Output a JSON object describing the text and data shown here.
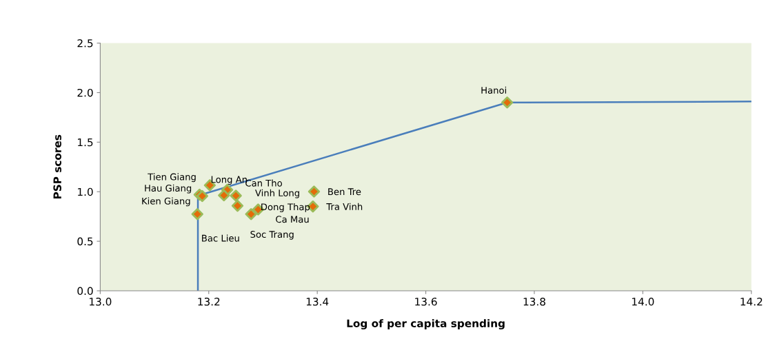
{
  "chart_data": {
    "type": "scatter",
    "xlabel": "Log of per capita spending",
    "ylabel": "PSP scores",
    "xlim": [
      13.0,
      14.2
    ],
    "xticks": [
      {
        "value": 13.0,
        "label": "13.0"
      },
      13.2,
      13.4,
      13.6,
      13.8,
      {
        "value": 14.0,
        "label": "14.0"
      },
      14.2
    ],
    "ylim": [
      0,
      2.5
    ],
    "yticks": [
      {
        "value": 0,
        "label": "0.0"
      },
      {
        "value": 0.5,
        "label": "0.5"
      },
      {
        "value": 1,
        "label": "1.0"
      },
      {
        "value": 1.5,
        "label": "1.5"
      },
      {
        "value": 2,
        "label": "2.0"
      },
      {
        "value": 2.5,
        "label": "2.5"
      }
    ],
    "grid": false,
    "legend": false,
    "marker": "diamond",
    "series": [
      {
        "type": "line",
        "color": "#4a7ebb",
        "x": [
          13.18,
          13.18,
          13.75,
          14.2
        ],
        "values": [
          0,
          0.96,
          1.9,
          1.91
        ],
        "marker": "none",
        "line_style": "solid"
      },
      {
        "color": "#e36c09",
        "x": [
          13.75,
          13.202,
          13.234,
          13.228,
          13.183,
          13.188,
          13.25,
          13.253,
          13.291,
          13.278,
          13.179,
          13.394,
          13.392
        ],
        "values": [
          1.9,
          1.065,
          1.019,
          0.963,
          0.97,
          0.956,
          0.96,
          0.858,
          0.82,
          0.774,
          0.774,
          1.002,
          0.851
        ]
      }
    ],
    "annotations": [
      {
        "text": "Hanoi",
        "x": 13.75,
        "y": 1.9
      },
      {
        "text": "Tien Giang",
        "x": 13.202,
        "y": 1.065
      },
      {
        "text": "Long An",
        "x": 13.234,
        "y": 1.019
      },
      {
        "text": "Can Tho",
        "x": 13.228,
        "y": 0.963
      },
      {
        "text": "Hau Giang",
        "x": 13.183,
        "y": 0.97
      },
      {
        "text": "Kien Giang",
        "x": 13.188,
        "y": 0.956
      },
      {
        "text": "Vinh Long",
        "x": 13.25,
        "y": 0.96
      },
      {
        "text": "Dong Thap",
        "x": 13.253,
        "y": 0.858
      },
      {
        "text": "Ca Mau",
        "x": 13.291,
        "y": 0.82
      },
      {
        "text": "Soc Trang",
        "x": 13.278,
        "y": 0.774
      },
      {
        "text": "Bac Lieu",
        "x": 13.179,
        "y": 0.774
      },
      {
        "text": "Ben Tre",
        "x": 13.394,
        "y": 1.002
      },
      {
        "text": "Tra Vinh",
        "x": 13.392,
        "y": 0.851
      }
    ]
  }
}
